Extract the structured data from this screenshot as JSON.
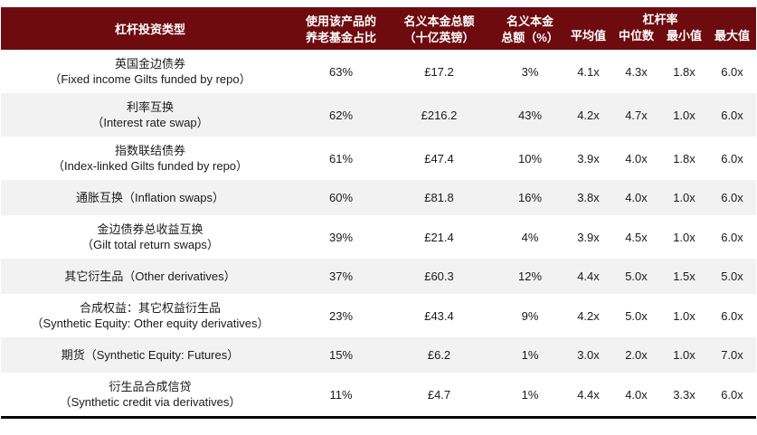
{
  "table": {
    "header": {
      "type": "杠杆投资类型",
      "pension_l1": "使用该产品的",
      "pension_l2": "养老基金占比",
      "notional_l1": "名义本金总额",
      "notional_l2": "（十亿英镑）",
      "notional_pct_l1": "名义本金",
      "notional_pct_l2": "总额（%）",
      "leverage_group": "杠杆率",
      "lev_avg": "平均值",
      "lev_median": "中位数",
      "lev_min": "最小值",
      "lev_max": "最大值"
    }
  },
  "colors": {
    "header_bg": "#6e0b0f",
    "header_text": "#ffffff",
    "row_alt_bg": "#f2f2f2",
    "body_text": "#1a1a1a",
    "bottom_border": "#000000"
  },
  "chart_data": {
    "type": "table",
    "columns": [
      "杠杆投资类型",
      "使用该产品的养老基金占比",
      "名义本金总额（十亿英镑）",
      "名义本金总额（%）",
      "杠杆率-平均值",
      "杠杆率-中位数",
      "杠杆率-最小值",
      "杠杆率-最大值"
    ],
    "rows": [
      {
        "label_zh": "英国金边债券",
        "label_en": "（Fixed income Gilts funded by repo）",
        "pension_pct": "63%",
        "notional_bn": "£17.2",
        "notional_pct": "3%",
        "lev_avg": "4.1x",
        "lev_median": "4.3x",
        "lev_min": "1.8x",
        "lev_max": "6.0x"
      },
      {
        "label_zh": "利率互换",
        "label_en": "（Interest rate swap）",
        "pension_pct": "62%",
        "notional_bn": "£216.2",
        "notional_pct": "43%",
        "lev_avg": "4.2x",
        "lev_median": "4.7x",
        "lev_min": "1.0x",
        "lev_max": "6.0x"
      },
      {
        "label_zh": "指数联结债券",
        "label_en": "（Index-linked Gilts funded by repo）",
        "pension_pct": "61%",
        "notional_bn": "£47.4",
        "notional_pct": "10%",
        "lev_avg": "3.9x",
        "lev_median": "4.0x",
        "lev_min": "1.8x",
        "lev_max": "6.0x"
      },
      {
        "label_zh": "通胀互换（Inflation swaps）",
        "label_en": "",
        "pension_pct": "60%",
        "notional_bn": "£81.8",
        "notional_pct": "16%",
        "lev_avg": "3.8x",
        "lev_median": "4.0x",
        "lev_min": "1.0x",
        "lev_max": "6.0x"
      },
      {
        "label_zh": "金边债券总收益互换",
        "label_en": "（Gilt total return swaps）",
        "pension_pct": "39%",
        "notional_bn": "£21.4",
        "notional_pct": "4%",
        "lev_avg": "3.9x",
        "lev_median": "4.5x",
        "lev_min": "1.0x",
        "lev_max": "6.0x"
      },
      {
        "label_zh": "其它衍生品（Other derivatives）",
        "label_en": "",
        "pension_pct": "37%",
        "notional_bn": "£60.3",
        "notional_pct": "12%",
        "lev_avg": "4.4x",
        "lev_median": "5.0x",
        "lev_min": "1.5x",
        "lev_max": "5.0x"
      },
      {
        "label_zh": "合成权益：其它权益衍生品",
        "label_en": "（Synthetic Equity: Other equity derivatives）",
        "pension_pct": "23%",
        "notional_bn": "£43.4",
        "notional_pct": "9%",
        "lev_avg": "4.2x",
        "lev_median": "5.0x",
        "lev_min": "1.0x",
        "lev_max": "6.0x"
      },
      {
        "label_zh": "期货（Synthetic Equity: Futures）",
        "label_en": "",
        "pension_pct": "15%",
        "notional_bn": "£6.2",
        "notional_pct": "1%",
        "lev_avg": "3.0x",
        "lev_median": "2.0x",
        "lev_min": "1.0x",
        "lev_max": "7.0x"
      },
      {
        "label_zh": "衍生品合成信贷",
        "label_en": "（Synthetic credit via derivatives）",
        "pension_pct": "11%",
        "notional_bn": "£4.7",
        "notional_pct": "1%",
        "lev_avg": "4.4x",
        "lev_median": "4.0x",
        "lev_min": "3.3x",
        "lev_max": "6.0x"
      }
    ]
  }
}
